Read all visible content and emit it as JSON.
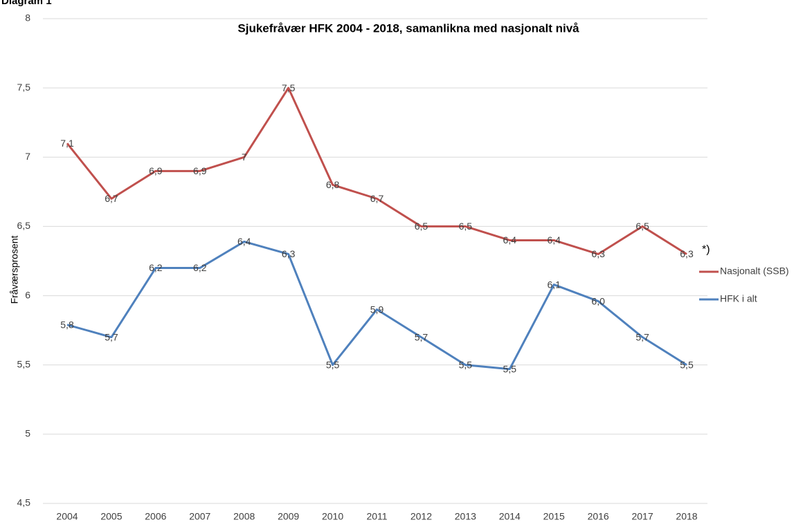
{
  "header": "Diagram 1",
  "chart_data": {
    "type": "line",
    "title": "Sjukefråvær HFK 2004 - 2018, samanlikna med nasjonalt nivå",
    "y_label": "Fråværsprosent",
    "annotation": "*)",
    "categories": [
      "2004",
      "2005",
      "2006",
      "2007",
      "2008",
      "2009",
      "2010",
      "2011",
      "2012",
      "2013",
      "2014",
      "2015",
      "2016",
      "2017",
      "2018"
    ],
    "series": [
      {
        "name": "Nasjonalt (SSB)",
        "color": "#c0504d",
        "values": [
          7.1,
          6.7,
          6.9,
          6.9,
          7.0,
          7.5,
          6.8,
          6.7,
          6.5,
          6.5,
          6.4,
          6.4,
          6.3,
          6.5,
          6.3
        ],
        "value_labels": [
          "7,1",
          "6,7",
          "6,9",
          "6,9",
          "7",
          "7,5",
          "6,8",
          "6,7",
          "6,5",
          "6,5",
          "6,4",
          "6,4",
          "6,3",
          "6,5",
          "6,3"
        ]
      },
      {
        "name": "HFK i alt",
        "color": "#4f81bd",
        "values": [
          5.79,
          5.7,
          6.2,
          6.2,
          6.39,
          6.3,
          5.5,
          5.9,
          5.7,
          5.5,
          5.47,
          6.08,
          5.96,
          5.7,
          5.5
        ],
        "value_labels": [
          "5,8",
          "5,7",
          "6,2",
          "6,2",
          "6,4",
          "6,3",
          "5,5",
          "5,9",
          "5,7",
          "5,5",
          "5,5",
          "6,1",
          "6,0",
          "5,7",
          "5,5"
        ]
      }
    ],
    "ylim": [
      4.5,
      8
    ],
    "yticks": [
      {
        "value": 4.5,
        "label": "4,5"
      },
      5,
      {
        "value": 5.5,
        "label": "5,5"
      },
      6,
      {
        "value": 6.5,
        "label": "6,5"
      },
      7,
      {
        "value": 7.5,
        "label": "7,5"
      },
      8
    ],
    "grid": true,
    "legend": "right"
  }
}
